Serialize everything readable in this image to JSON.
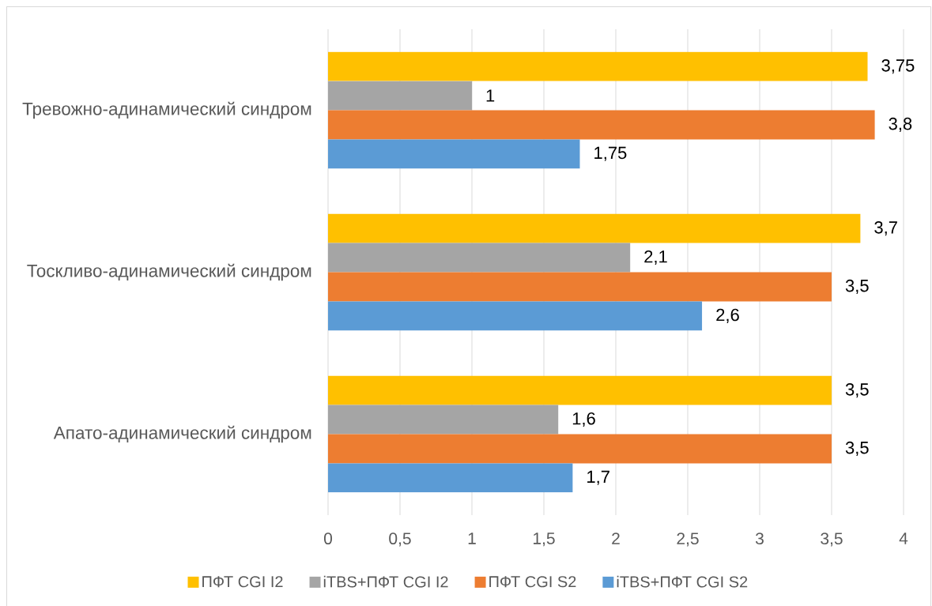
{
  "chart_data": {
    "type": "bar",
    "orientation": "horizontal",
    "categories": [
      "Тревожно-адинамический синдром",
      "Тоскливо-адинамический синдром",
      "Апато-адинамический синдром"
    ],
    "series": [
      {
        "name": "ПФТ CGI I2",
        "color": "#ffc000",
        "values": [
          3.75,
          3.7,
          3.5
        ],
        "value_labels": [
          "3,75",
          "3,7",
          "3,5"
        ]
      },
      {
        "name": "iTBS+ПФТ CGI I2",
        "color": "#a5a5a5",
        "values": [
          1,
          2.1,
          1.6
        ],
        "value_labels": [
          "1",
          "2,1",
          "1,6"
        ]
      },
      {
        "name": "ПФТ CGI S2",
        "color": "#ed7d31",
        "values": [
          3.8,
          3.5,
          3.5
        ],
        "value_labels": [
          "3,8",
          "3,5",
          "3,5"
        ]
      },
      {
        "name": "iTBS+ПФТ CGI S2",
        "color": "#5b9bd5",
        "values": [
          1.75,
          2.6,
          1.7
        ],
        "value_labels": [
          "1,75",
          "2,6",
          "1,7"
        ]
      }
    ],
    "xlim": [
      0,
      4
    ],
    "xticks": [
      0,
      {
        "value": 0.5,
        "label": "0,5"
      },
      1,
      {
        "value": 1.5,
        "label": "1,5"
      },
      2,
      {
        "value": 2.5,
        "label": "2,5"
      },
      3,
      {
        "value": 3.5,
        "label": "3,5"
      },
      4
    ],
    "grid": "x",
    "legend": "bottom"
  }
}
